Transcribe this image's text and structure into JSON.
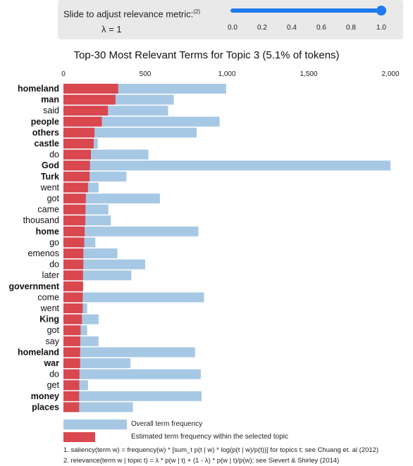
{
  "slider": {
    "label": "Slide to adjust relevance metric:",
    "label_sup": "(2)",
    "lambda_text": "λ = 1",
    "value": 1.0,
    "ticks": [
      "0.0",
      "0.2",
      "0.4",
      "0.6",
      "0.8",
      "1.0"
    ]
  },
  "chart_title": "Top-30 Most Relevant Terms for Topic 3 (5.1% of tokens)",
  "chart_data": {
    "type": "bar",
    "orientation": "horizontal",
    "title": "Top-30 Most Relevant Terms for Topic 3 (5.1% of tokens)",
    "xlim": [
      0,
      2000
    ],
    "x_ticks": [
      "0",
      "500",
      "1,000",
      "1,500",
      "2,000"
    ],
    "x_tick_values": [
      0,
      500,
      1000,
      1500,
      2000
    ],
    "terms": [
      "homeland",
      "man",
      "said",
      "people",
      "others",
      "castle",
      "do",
      "God",
      "Turk",
      "went",
      "got",
      "came",
      "thousand",
      "home",
      "go",
      "emenos",
      "do",
      "later",
      "government",
      "come",
      "went",
      "King",
      "got",
      "say",
      "homeland",
      "war",
      "do",
      "get",
      "money",
      "places"
    ],
    "bold": [
      true,
      true,
      false,
      true,
      true,
      true,
      false,
      true,
      true,
      false,
      false,
      false,
      false,
      true,
      false,
      false,
      false,
      false,
      true,
      false,
      false,
      true,
      false,
      false,
      true,
      true,
      false,
      false,
      true,
      true
    ],
    "series": [
      {
        "name": "Overall term frequency",
        "color": "#a6c8e4",
        "values": [
          995,
          675,
          640,
          955,
          815,
          210,
          520,
          2000,
          385,
          215,
          590,
          275,
          290,
          825,
          195,
          330,
          500,
          415,
          120,
          860,
          145,
          215,
          145,
          215,
          805,
          410,
          840,
          150,
          845,
          425
        ]
      },
      {
        "name": "Estimated term frequency within the selected topic",
        "color": "#d9474f",
        "values": [
          335,
          318,
          272,
          235,
          190,
          185,
          168,
          162,
          160,
          150,
          137,
          135,
          134,
          130,
          127,
          122,
          122,
          120,
          120,
          118,
          118,
          113,
          105,
          103,
          102,
          102,
          98,
          97,
          96,
          96
        ]
      }
    ],
    "legend": [
      "Overall term frequency",
      "Estimated term frequency within the selected topic"
    ],
    "legend_placement": "bottom",
    "grid": false
  },
  "footnotes": [
    "1. saliency(term w) = frequency(w) * [sum_t p(t | w) * log(p(t | w)/p(t))] for topics t; see Chuang et. al (2012)",
    "2. relevance(term w | topic t) = λ * p(w | t) + (1 - λ) * p(w | t)/p(w); see Sievert & Shirley (2014)"
  ]
}
